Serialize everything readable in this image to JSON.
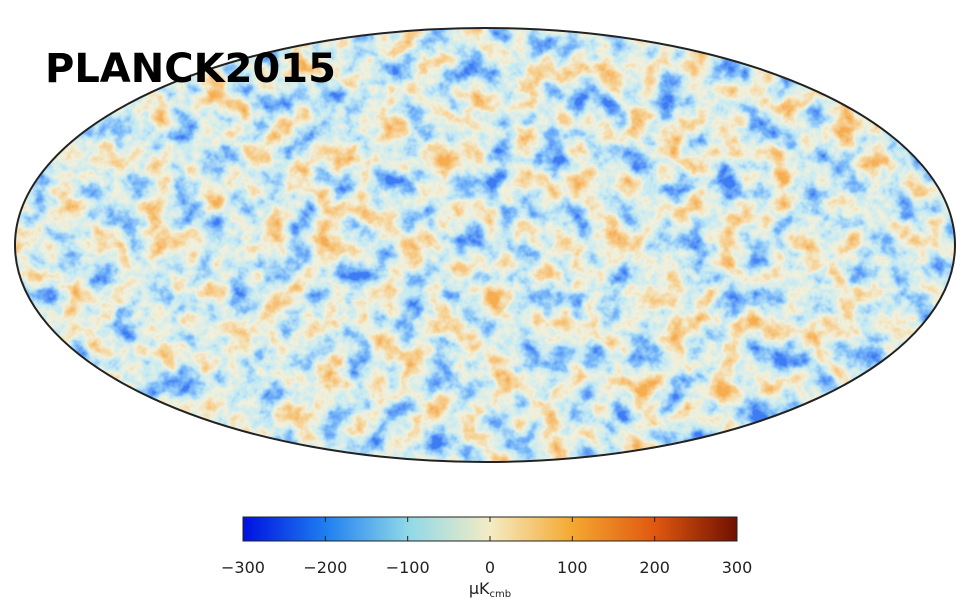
{
  "chart_data": {
    "type": "map",
    "title": "PLANCK2015",
    "colormap": [
      "#0010e0",
      "#1e7ef0",
      "#8fd8e8",
      "#f4ecc4",
      "#f4a830",
      "#e05810",
      "#701000"
    ],
    "clim": [
      -300,
      300
    ],
    "cticks": [
      {
        "value": -300,
        "label": "−300"
      },
      {
        "value": -200,
        "label": "−200"
      },
      {
        "value": -100,
        "label": "−100"
      },
      0,
      100,
      200,
      300
    ],
    "colorbar_label": {
      "main": "μK",
      "sub": "cmb"
    }
  }
}
